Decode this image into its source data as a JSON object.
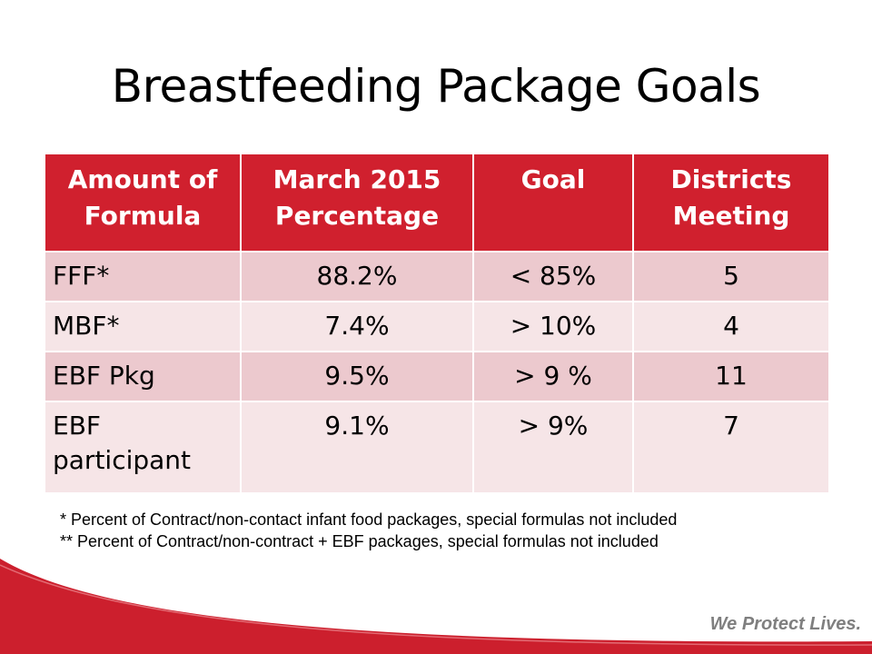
{
  "title": "Breastfeeding Package Goals",
  "table": {
    "headers": [
      [
        "Amount of",
        "Formula"
      ],
      [
        "March 2015",
        "Percentage"
      ],
      [
        "Goal"
      ],
      [
        "Districts",
        "Meeting"
      ]
    ],
    "rows": [
      {
        "label": [
          "FFF*"
        ],
        "percentage": "88.2%",
        "goal": "< 85%",
        "districts": "5"
      },
      {
        "label": [
          "MBF*"
        ],
        "percentage": "7.4%",
        "goal": "> 10%",
        "districts": "4"
      },
      {
        "label": [
          "EBF Pkg"
        ],
        "percentage": "9.5%",
        "goal": "> 9 %",
        "districts": "11"
      },
      {
        "label": [
          "EBF",
          "participant"
        ],
        "percentage": "9.1%",
        "goal": "> 9%",
        "districts": "7"
      }
    ]
  },
  "footnotes": [
    "* Percent of  Contract/non-contact  infant food packages, special formulas not included",
    "** Percent of Contract/non-contract + EBF packages, special formulas not included"
  ],
  "tagline": "We Protect Lives.",
  "colors": {
    "header_red": "#d0202e",
    "row_dark": "#ecc9ce",
    "row_light": "#f6e5e7",
    "swoosh_red": "#cc1f2d",
    "tagline_gray": "#7f7f7f"
  }
}
